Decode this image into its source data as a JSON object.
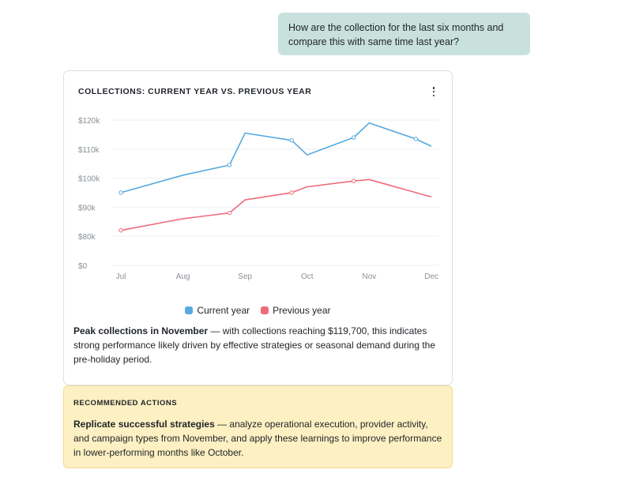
{
  "user_message": "How are the collection for the last six months and compare this with same time last year?",
  "card": {
    "title": "COLLECTIONS: CURRENT YEAR VS. PREVIOUS YEAR",
    "menu_icon": "more-vertical-icon",
    "insight_bold": "Peak collections in November",
    "insight_text": " — with collections reaching $119,700, this indicates strong performance likely driven by effective strategies or seasonal demand during the pre-holiday period."
  },
  "chart_data": {
    "type": "line",
    "title": "COLLECTIONS: CURRENT YEAR VS. PREVIOUS YEAR",
    "xlabel": "",
    "ylabel": "",
    "categories": [
      "Jul",
      "Aug",
      "Sep",
      "Oct",
      "Nov",
      "Dec"
    ],
    "y_ticks": [
      "$120k",
      "$110k",
      "$100k",
      "$90k",
      "$80k",
      "$0"
    ],
    "y_axis_note": "broken axis: $0 shown at baseline, then $80k to $120k",
    "grid": true,
    "legend_position": "bottom-center",
    "series": [
      {
        "name": "Current year",
        "color": "#58a9e0",
        "points": [
          {
            "x": "Jul",
            "y": 95000
          },
          {
            "x": "Aug",
            "y": 101000
          },
          {
            "x": "Aug–Sep",
            "y": 104500
          },
          {
            "x": "Sep",
            "y": 115500
          },
          {
            "x": "Sep–Oct",
            "y": 113000
          },
          {
            "x": "Oct",
            "y": 108000
          },
          {
            "x": "Oct–Nov",
            "y": 114000
          },
          {
            "x": "Nov",
            "y": 119000
          },
          {
            "x": "Nov–Dec",
            "y": 113500
          },
          {
            "x": "Dec",
            "y": 111000
          }
        ]
      },
      {
        "name": "Previous year",
        "color": "#ef6b7b",
        "points": [
          {
            "x": "Jul",
            "y": 82000
          },
          {
            "x": "Aug",
            "y": 86000
          },
          {
            "x": "Aug–Sep",
            "y": 88000
          },
          {
            "x": "Sep",
            "y": 92500
          },
          {
            "x": "Sep–Oct",
            "y": 95000
          },
          {
            "x": "Oct",
            "y": 97000
          },
          {
            "x": "Oct–Nov",
            "y": 99000
          },
          {
            "x": "Nov",
            "y": 99500
          },
          {
            "x": "Dec",
            "y": 93500
          }
        ]
      }
    ]
  },
  "actions": {
    "title": "RECOMMENDED ACTIONS",
    "bold": "Replicate successful strategies",
    "text": " — analyze operational execution, provider activity, and campaign types from November, and apply these learnings to improve performance in lower-performing months like October."
  }
}
